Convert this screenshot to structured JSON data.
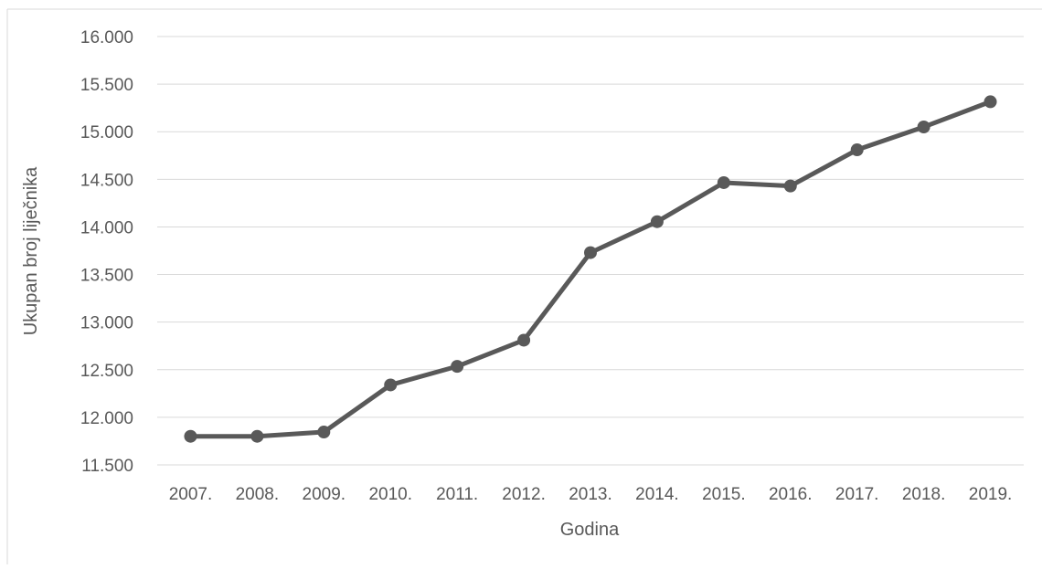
{
  "chart_data": {
    "type": "line",
    "title": "",
    "xlabel": "Godina",
    "ylabel": "Ukupan broj liječnika",
    "categories": [
      "2007.",
      "2008.",
      "2009.",
      "2010.",
      "2011.",
      "2012.",
      "2013.",
      "2014.",
      "2015.",
      "2016.",
      "2017.",
      "2018.",
      "2019."
    ],
    "series": [
      {
        "values": [
          11800,
          11800,
          11845,
          12340,
          12535,
          12810,
          13730,
          14055,
          14465,
          14430,
          14810,
          15050,
          15315
        ]
      }
    ],
    "ylim": [
      11500,
      16000
    ],
    "yticks": [
      11500,
      12000,
      12500,
      13000,
      13500,
      14000,
      14500,
      15000,
      15500,
      16000
    ],
    "ytick_labels": [
      "11.500",
      "12.000",
      "12.500",
      "13.000",
      "13.500",
      "14.000",
      "14.500",
      "15.000",
      "15.500",
      "16.000"
    ],
    "grid": true,
    "legend": "none",
    "colors": {
      "line": "#595959",
      "grid": "#d9d9d9",
      "text": "#595959",
      "frame": "#d9d9d9"
    }
  }
}
